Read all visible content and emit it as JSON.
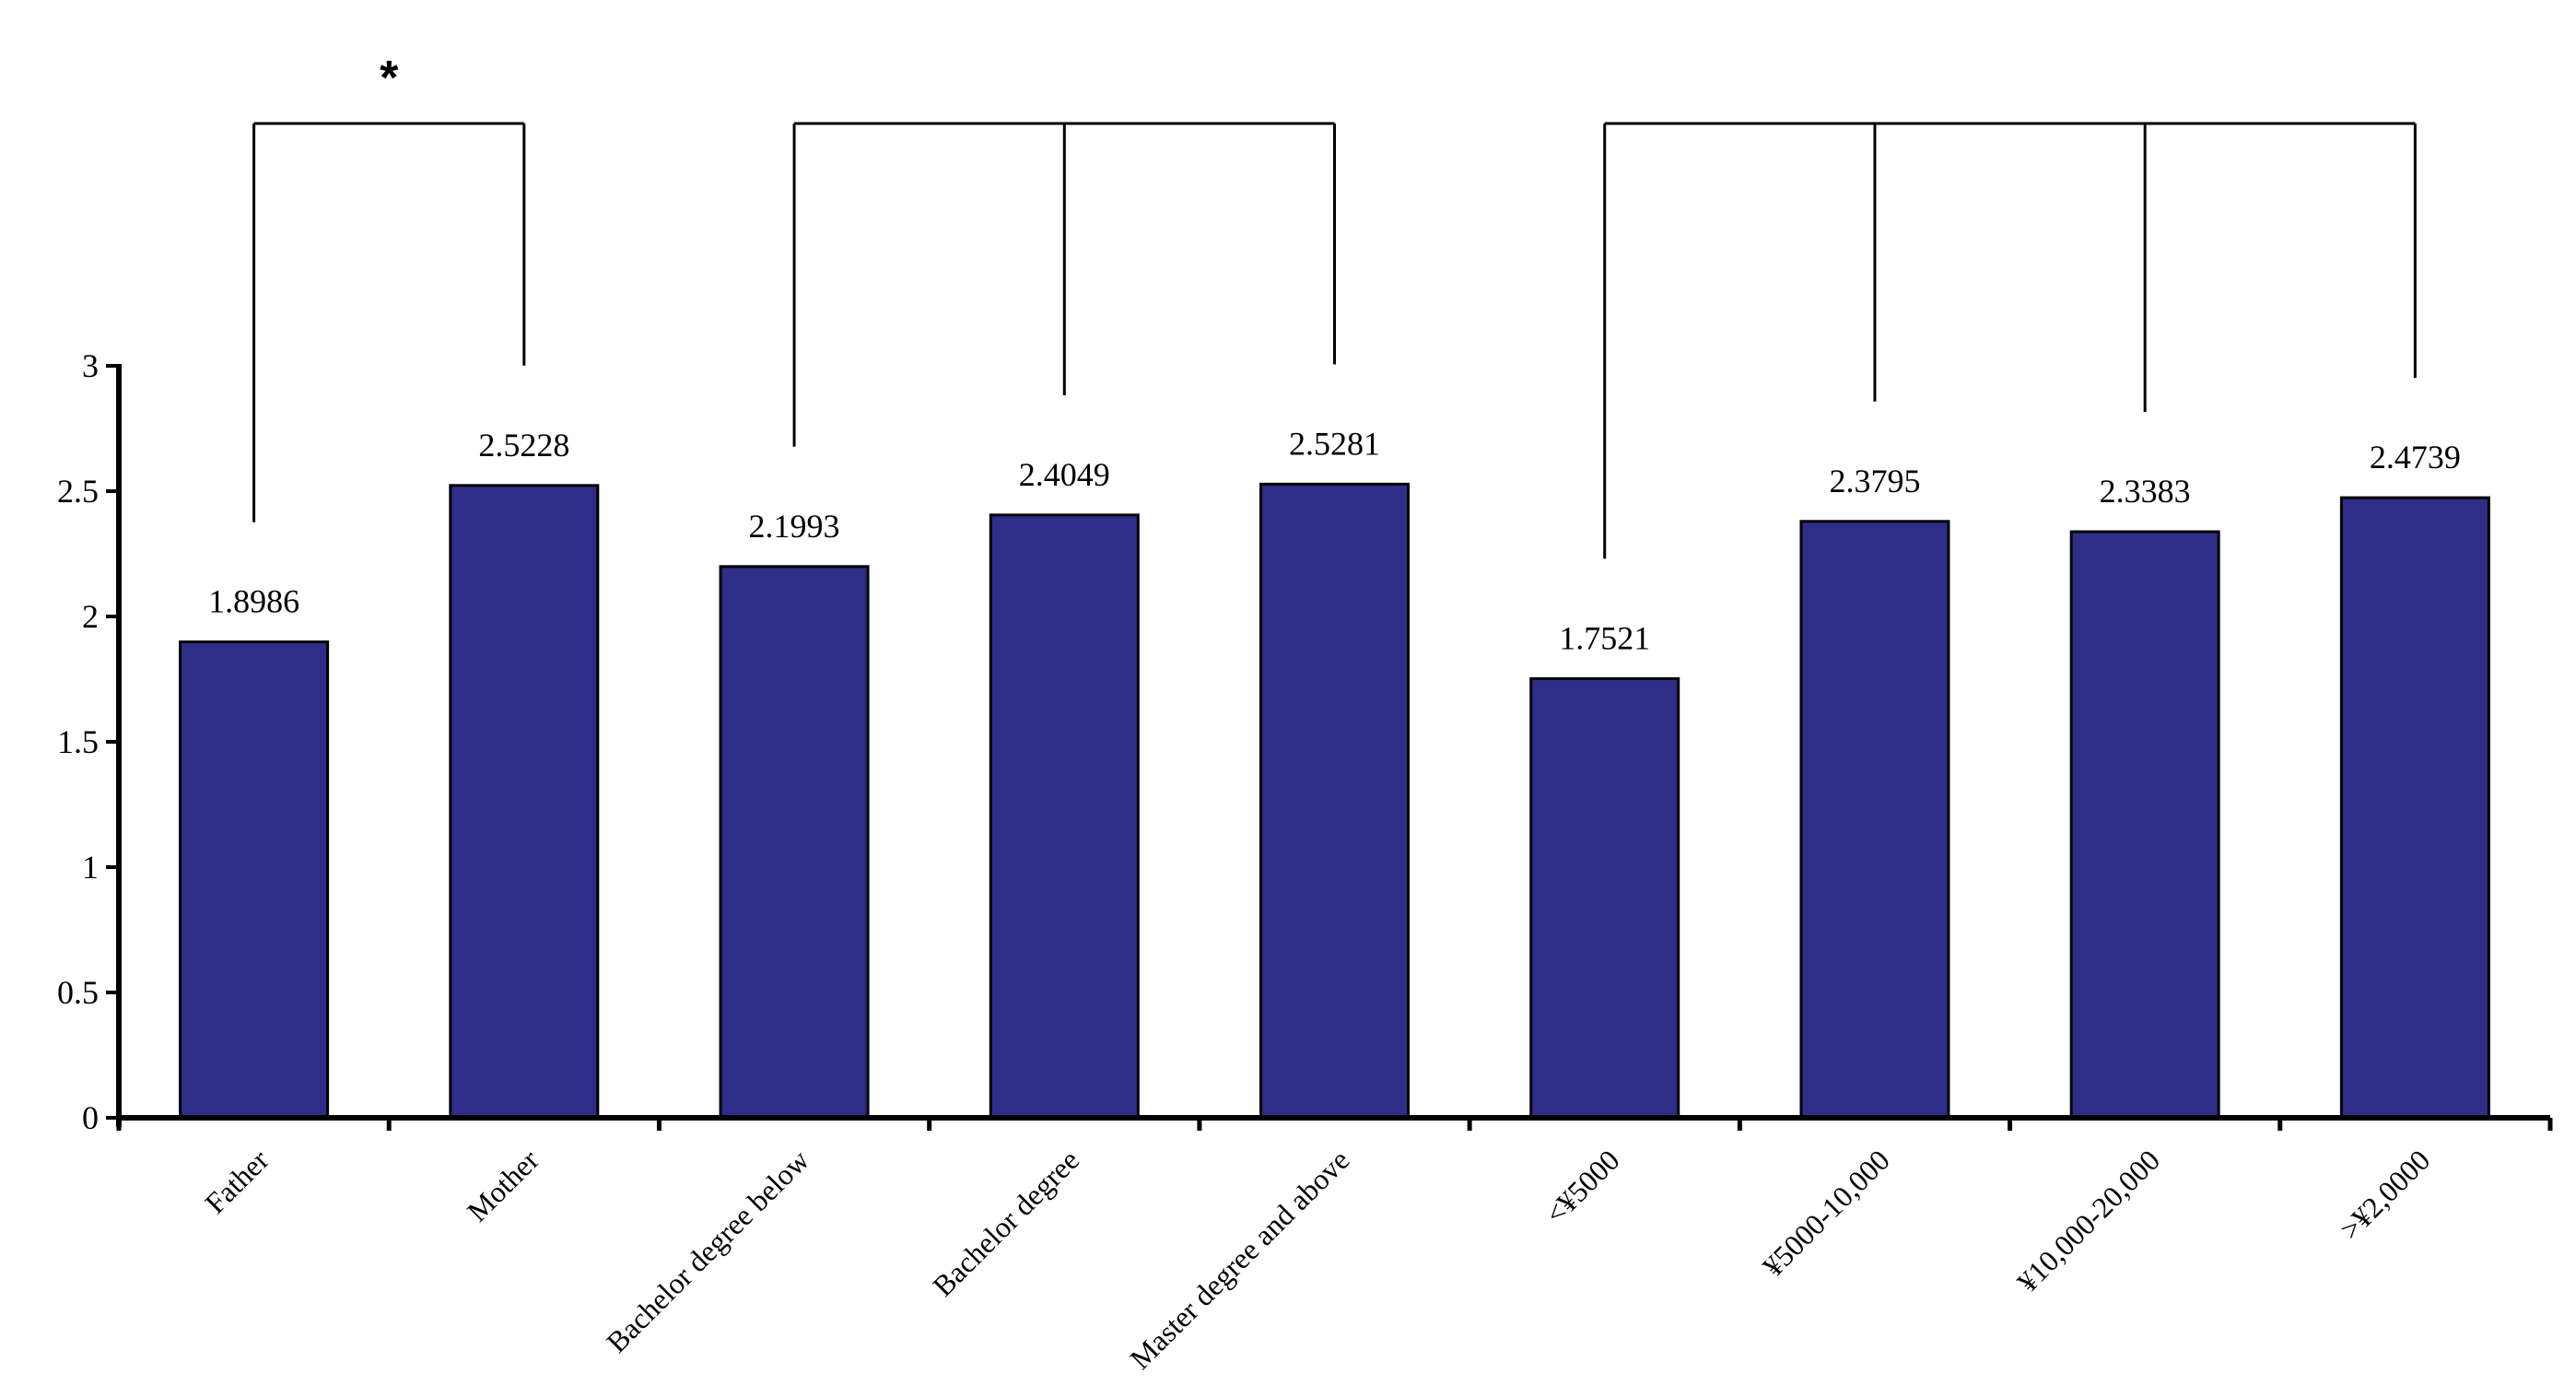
{
  "chart_data": {
    "type": "bar",
    "categories": [
      "Father",
      "Mother",
      "Bachelor degree below",
      "Bachelor degree",
      "Master degree and above",
      "<¥5000",
      "¥5000-10,000",
      "¥10,000-20,000",
      ">¥2,0000"
    ],
    "values": [
      1.8986,
      2.5228,
      2.1993,
      2.4049,
      2.5281,
      1.7521,
      2.3795,
      2.3383,
      2.4739
    ],
    "value_labels": [
      "1.8986",
      "2.5228",
      "2.1993",
      "2.4049",
      "2.5281",
      "1.7521",
      "2.3795",
      "2.3383",
      "2.4739"
    ],
    "ylim": [
      0,
      3
    ],
    "yticks": [
      "0",
      "0.5",
      "1",
      "1.5",
      "2",
      "2.5",
      "3"
    ],
    "ytick_values": [
      0,
      0.5,
      1,
      1.5,
      2,
      2.5,
      3
    ],
    "grid": false,
    "bar_color": "#2e2d88",
    "comparison_groups": [
      {
        "members": [
          0,
          1
        ],
        "significance": "*"
      },
      {
        "members": [
          2,
          3,
          4
        ],
        "significance": ""
      },
      {
        "members": [
          5,
          6,
          7,
          8
        ],
        "significance": ""
      }
    ]
  }
}
